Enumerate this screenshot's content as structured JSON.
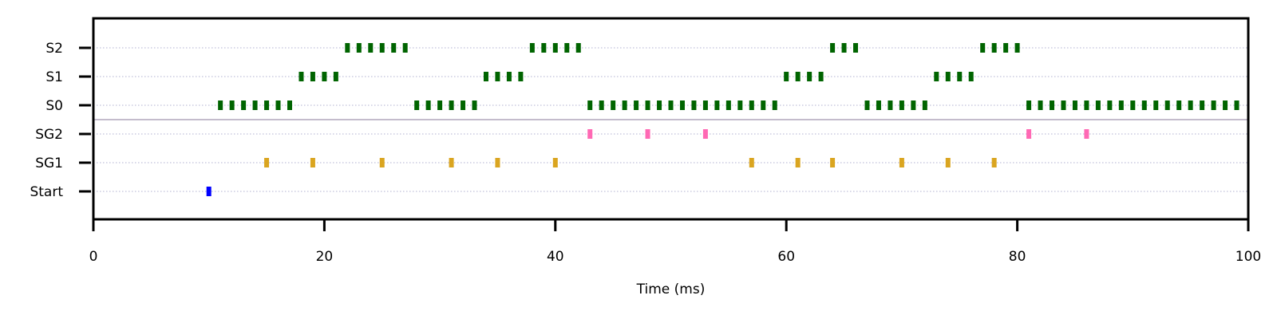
{
  "chart_data": {
    "type": "raster",
    "xlabel": "Time (ms)",
    "xlim": [
      0,
      100
    ],
    "xticks": [
      0,
      20,
      40,
      60,
      80,
      100
    ],
    "categories": [
      "Start",
      "SG1",
      "SG2",
      "S0",
      "S1",
      "S2"
    ],
    "grid": "horizontal dotted",
    "separator_between": [
      "SG2",
      "S0"
    ],
    "series": [
      {
        "name": "Start",
        "color": "#0000ff",
        "events": [
          10
        ]
      },
      {
        "name": "SG1",
        "color": "#daa520",
        "events": [
          15,
          19,
          25,
          31,
          35,
          40,
          57,
          61,
          64,
          70,
          74,
          78
        ]
      },
      {
        "name": "SG2",
        "color": "#ff69b4",
        "events": [
          43,
          48,
          53,
          81,
          86
        ]
      },
      {
        "name": "S0",
        "color": "#006400",
        "events": [
          11,
          12,
          13,
          14,
          15,
          16,
          17,
          28,
          29,
          30,
          31,
          32,
          33,
          43,
          44,
          45,
          46,
          47,
          48,
          49,
          50,
          51,
          52,
          53,
          54,
          55,
          56,
          57,
          58,
          59,
          67,
          68,
          69,
          70,
          71,
          72,
          81,
          82,
          83,
          84,
          85,
          86,
          87,
          88,
          89,
          90,
          91,
          92,
          93,
          94,
          95,
          96,
          97,
          98,
          99
        ]
      },
      {
        "name": "S1",
        "color": "#006400",
        "events": [
          18,
          19,
          20,
          21,
          34,
          35,
          36,
          37,
          60,
          61,
          62,
          63,
          73,
          74,
          75,
          76
        ]
      },
      {
        "name": "S2",
        "color": "#006400",
        "events": [
          22,
          23,
          24,
          25,
          26,
          27,
          38,
          39,
          40,
          41,
          42,
          64,
          65,
          66,
          77,
          78,
          79,
          80
        ]
      }
    ]
  }
}
